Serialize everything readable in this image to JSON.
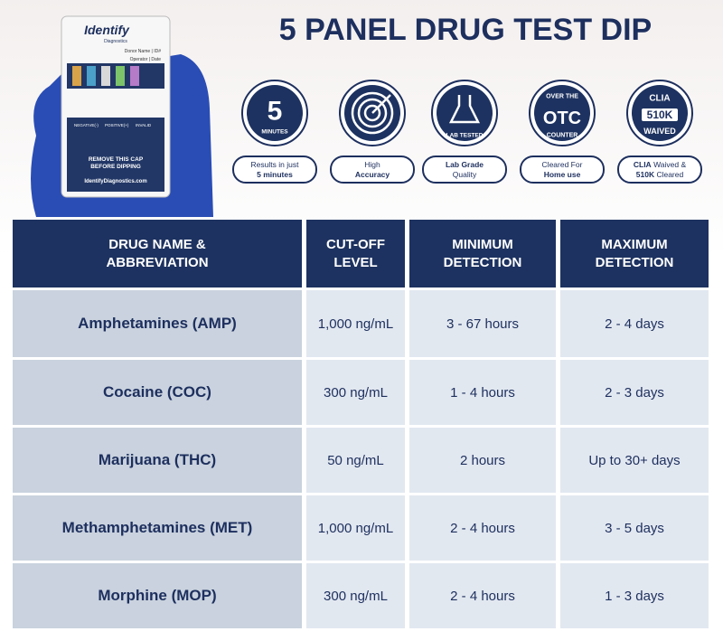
{
  "title": "5 PANEL DRUG TEST DIP",
  "device": {
    "brand": "Identify",
    "brand_sub": "Diagnostics",
    "fields": [
      "Donor Name | ID#",
      "Operator | Date"
    ],
    "results": [
      "NEGATIVE(-)",
      "POSITIVE(+)",
      "INVALID"
    ],
    "cap": [
      "REMOVE THIS CAP",
      "BEFORE DIPPING"
    ],
    "url": "IdentifyDiagnostics.com"
  },
  "badges": [
    {
      "icon": [
        "5",
        "MINUTES"
      ],
      "caption": [
        [
          {
            "text": "Results in just"
          }
        ],
        [
          {
            "text": "5 minutes",
            "bold": true
          }
        ]
      ]
    },
    {
      "icon": [],
      "caption": [
        [
          {
            "text": "High"
          }
        ],
        [
          {
            "text": "Accuracy",
            "bold": true
          }
        ]
      ]
    },
    {
      "icon": [
        "LAB TESTED"
      ],
      "caption": [
        [
          {
            "text": "Lab Grade",
            "bold": true
          }
        ],
        [
          {
            "text": "Quality"
          }
        ]
      ]
    },
    {
      "icon": [
        "OVER THE",
        "OTC",
        "COUNTER"
      ],
      "caption": [
        [
          {
            "text": "Cleared For"
          }
        ],
        [
          {
            "text": "Home use",
            "bold": true
          }
        ]
      ]
    },
    {
      "icon": [
        "CLIA",
        "510K",
        "WAIVED"
      ],
      "caption": [
        [
          {
            "text": "CLIA",
            "bold": true
          },
          {
            "text": " Waived &"
          }
        ],
        [
          {
            "text": "510K",
            "bold": true
          },
          {
            "text": " Cleared"
          }
        ]
      ]
    }
  ],
  "table": {
    "header": [
      [
        "DRUG NAME &",
        "ABBREVIATION"
      ],
      [
        "CUT-OFF",
        "LEVEL"
      ],
      [
        "MINIMUM",
        "DETECTION"
      ],
      [
        "MAXIMUM",
        "DETECTION"
      ]
    ],
    "rows": [
      [
        "Amphetamines (AMP)",
        "1,000 ng/mL",
        "3 - 67 hours",
        "2 - 4 days"
      ],
      [
        "Cocaine (COC)",
        "300 ng/mL",
        "1 - 4 hours",
        "2 - 3 days"
      ],
      [
        "Marijuana (THC)",
        "50 ng/mL",
        "2 hours",
        "Up to 30+ days"
      ],
      [
        "Methamphetamines (MET)",
        "1,000 ng/mL",
        "2 - 4 hours",
        "3 - 5 days"
      ],
      [
        "Morphine (MOP)",
        "300 ng/mL",
        "2 - 4 hours",
        "1 - 3 days"
      ]
    ]
  }
}
